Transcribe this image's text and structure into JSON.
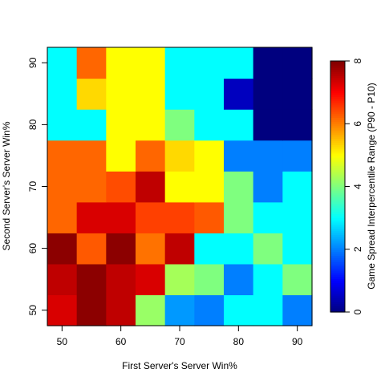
{
  "chart_data": {
    "type": "heatmap",
    "title": "",
    "xlabel": "First Server's Server Win%",
    "ylabel": "Second Server's Server Win%",
    "colorbar_label": "Game Spread Interpercentile Range (P90 - P10)",
    "x_ticks": [
      "50",
      "60",
      "70",
      "80",
      "90"
    ],
    "y_ticks": [
      "50",
      "60",
      "70",
      "80",
      "90"
    ],
    "colorbar_ticks": [
      "0",
      "2",
      "4",
      "6",
      "8"
    ],
    "xlim": [
      47.5,
      92.5
    ],
    "ylim": [
      47.5,
      92.5
    ],
    "x_centers": [
      50,
      55,
      60,
      65,
      70,
      75,
      80,
      85,
      90
    ],
    "y_centers": [
      50,
      55,
      60,
      65,
      70,
      75,
      80,
      85,
      90
    ],
    "z_range": [
      0,
      8
    ],
    "colormap": [
      "#00007F",
      "#0000FF",
      "#007FFF",
      "#00FFFF",
      "#7FFF7F",
      "#FFFF00",
      "#FF7F00",
      "#FF0000",
      "#7F0000"
    ],
    "values_rows_y_ascending": [
      [
        7.3,
        7.9,
        7.5,
        4.2,
        2.2,
        2.0,
        3.0,
        3.0,
        2.0
      ],
      [
        7.5,
        7.9,
        7.5,
        7.3,
        4.3,
        4.0,
        2.0,
        3.0,
        4.0
      ],
      [
        7.9,
        6.3,
        7.9,
        6.1,
        7.5,
        3.0,
        3.0,
        4.0,
        3.0
      ],
      [
        6.2,
        7.3,
        7.3,
        6.5,
        6.5,
        6.3,
        4.0,
        3.0,
        3.0
      ],
      [
        6.2,
        6.2,
        6.4,
        7.5,
        5.0,
        5.0,
        4.0,
        2.0,
        3.0
      ],
      [
        6.2,
        6.2,
        5.0,
        6.2,
        5.3,
        5.0,
        2.0,
        2.0,
        2.0
      ],
      [
        3.0,
        3.0,
        5.0,
        5.0,
        4.0,
        3.0,
        3.0,
        0.0,
        0.0
      ],
      [
        3.0,
        5.3,
        5.0,
        5.0,
        3.0,
        3.0,
        0.5,
        0.0,
        0.0
      ],
      [
        3.0,
        6.2,
        5.0,
        5.0,
        3.0,
        3.0,
        3.0,
        0.0,
        0.0
      ]
    ]
  }
}
